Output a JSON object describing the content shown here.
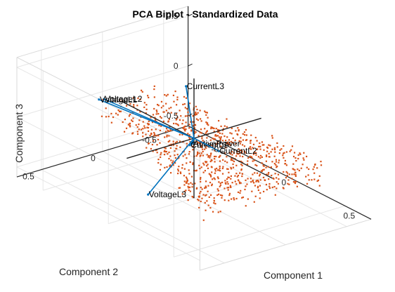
{
  "chart_data": {
    "type": "scatter",
    "title": "PCA Biplot - Standardized Data",
    "xlabel": "Component 1",
    "ylabel": "Component 2",
    "zlabel": "Component 3",
    "x_ticks": [
      "-0.5",
      "0",
      "0.5"
    ],
    "y_ticks": [
      "-0.5",
      "0",
      "0.5"
    ],
    "z_ticks": [
      "-0.5",
      "0",
      "0.5"
    ],
    "xlim": [
      -0.7,
      0.7
    ],
    "ylim": [
      -0.7,
      0.7
    ],
    "zlim": [
      -0.6,
      0.6
    ],
    "grid": true,
    "colors": {
      "vectors": "#0072BD",
      "points": "#D95319",
      "axes": "#000000",
      "grid": "#e6e6e6"
    },
    "vectors": [
      {
        "label": "CurrentL3",
        "x": 0.07,
        "y": 0.14,
        "z": 0.62
      },
      {
        "label": "VoltageL2",
        "x": -0.37,
        "y": 0.34,
        "z": 0.27
      },
      {
        "label": "VoltageL1",
        "x": -0.39,
        "y": 0.36,
        "z": 0.26
      },
      {
        "label": "ActivePower",
        "x": 0.12,
        "y": 0.14,
        "z": 0.08
      },
      {
        "label": "CurrentL1",
        "x": 0.1,
        "y": 0.14,
        "z": 0.05
      },
      {
        "label": "CurrentL2",
        "x": 0.04,
        "y": -0.16,
        "z": -0.16
      },
      {
        "label": "VoltageL3",
        "x": -0.22,
        "y": 0.14,
        "z": -0.66
      }
    ],
    "point_cloud": {
      "count": 900,
      "x_range": [
        -0.62,
        0.75
      ],
      "y_range": [
        -0.45,
        0.6
      ],
      "z_range": [
        -0.12,
        0.12
      ]
    }
  }
}
